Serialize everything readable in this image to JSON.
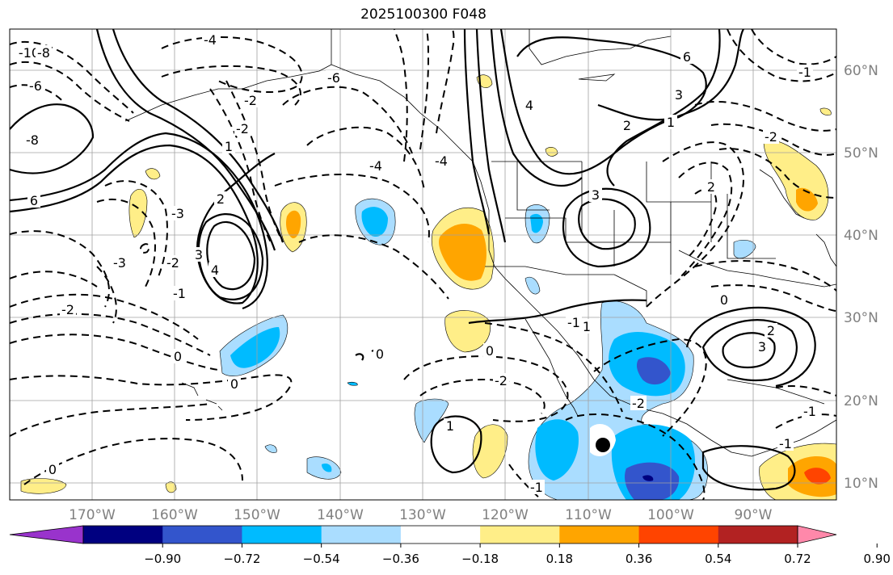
{
  "title": "2025100300 F048",
  "lat_labels": [
    "60°N",
    "50°N",
    "40°N",
    "30°N",
    "20°N",
    "10°N"
  ],
  "lon_labels": [
    "170°W",
    "160°W",
    "150°W",
    "140°W",
    "130°W",
    "120°W",
    "110°W",
    "100°W",
    "90°W"
  ],
  "colorbar": {
    "colors": [
      "#9933cc",
      "#000080",
      "#3355cc",
      "#00bbff",
      "#aaddff",
      "#ffffff",
      "#ffee88",
      "#ffa500",
      "#ff4400",
      "#b22222",
      "#ff88aa"
    ],
    "tick_labels": [
      "−0.90",
      "−0.72",
      "−0.54",
      "−0.36",
      "−0.18",
      "0.18",
      "0.36",
      "0.54",
      "0.72",
      "0.90"
    ]
  },
  "contour_labels": {
    "solid": [
      "6",
      "4",
      "3",
      "2",
      "1",
      "3",
      "2",
      "1",
      "3",
      "4",
      "6",
      "3",
      "2",
      "1",
      "2",
      "1",
      "0"
    ],
    "dashed": [
      "-10",
      "-8",
      "-6",
      "-4",
      "-8",
      "-4",
      "-2",
      "-3",
      "-2",
      "-4",
      "-6",
      "-2",
      "-3",
      "-1",
      "-2",
      "-1",
      "0",
      "0",
      "0",
      "0",
      "-1",
      "-2",
      "-2",
      "-1",
      "-2",
      "-1",
      "0",
      "-1"
    ]
  }
}
